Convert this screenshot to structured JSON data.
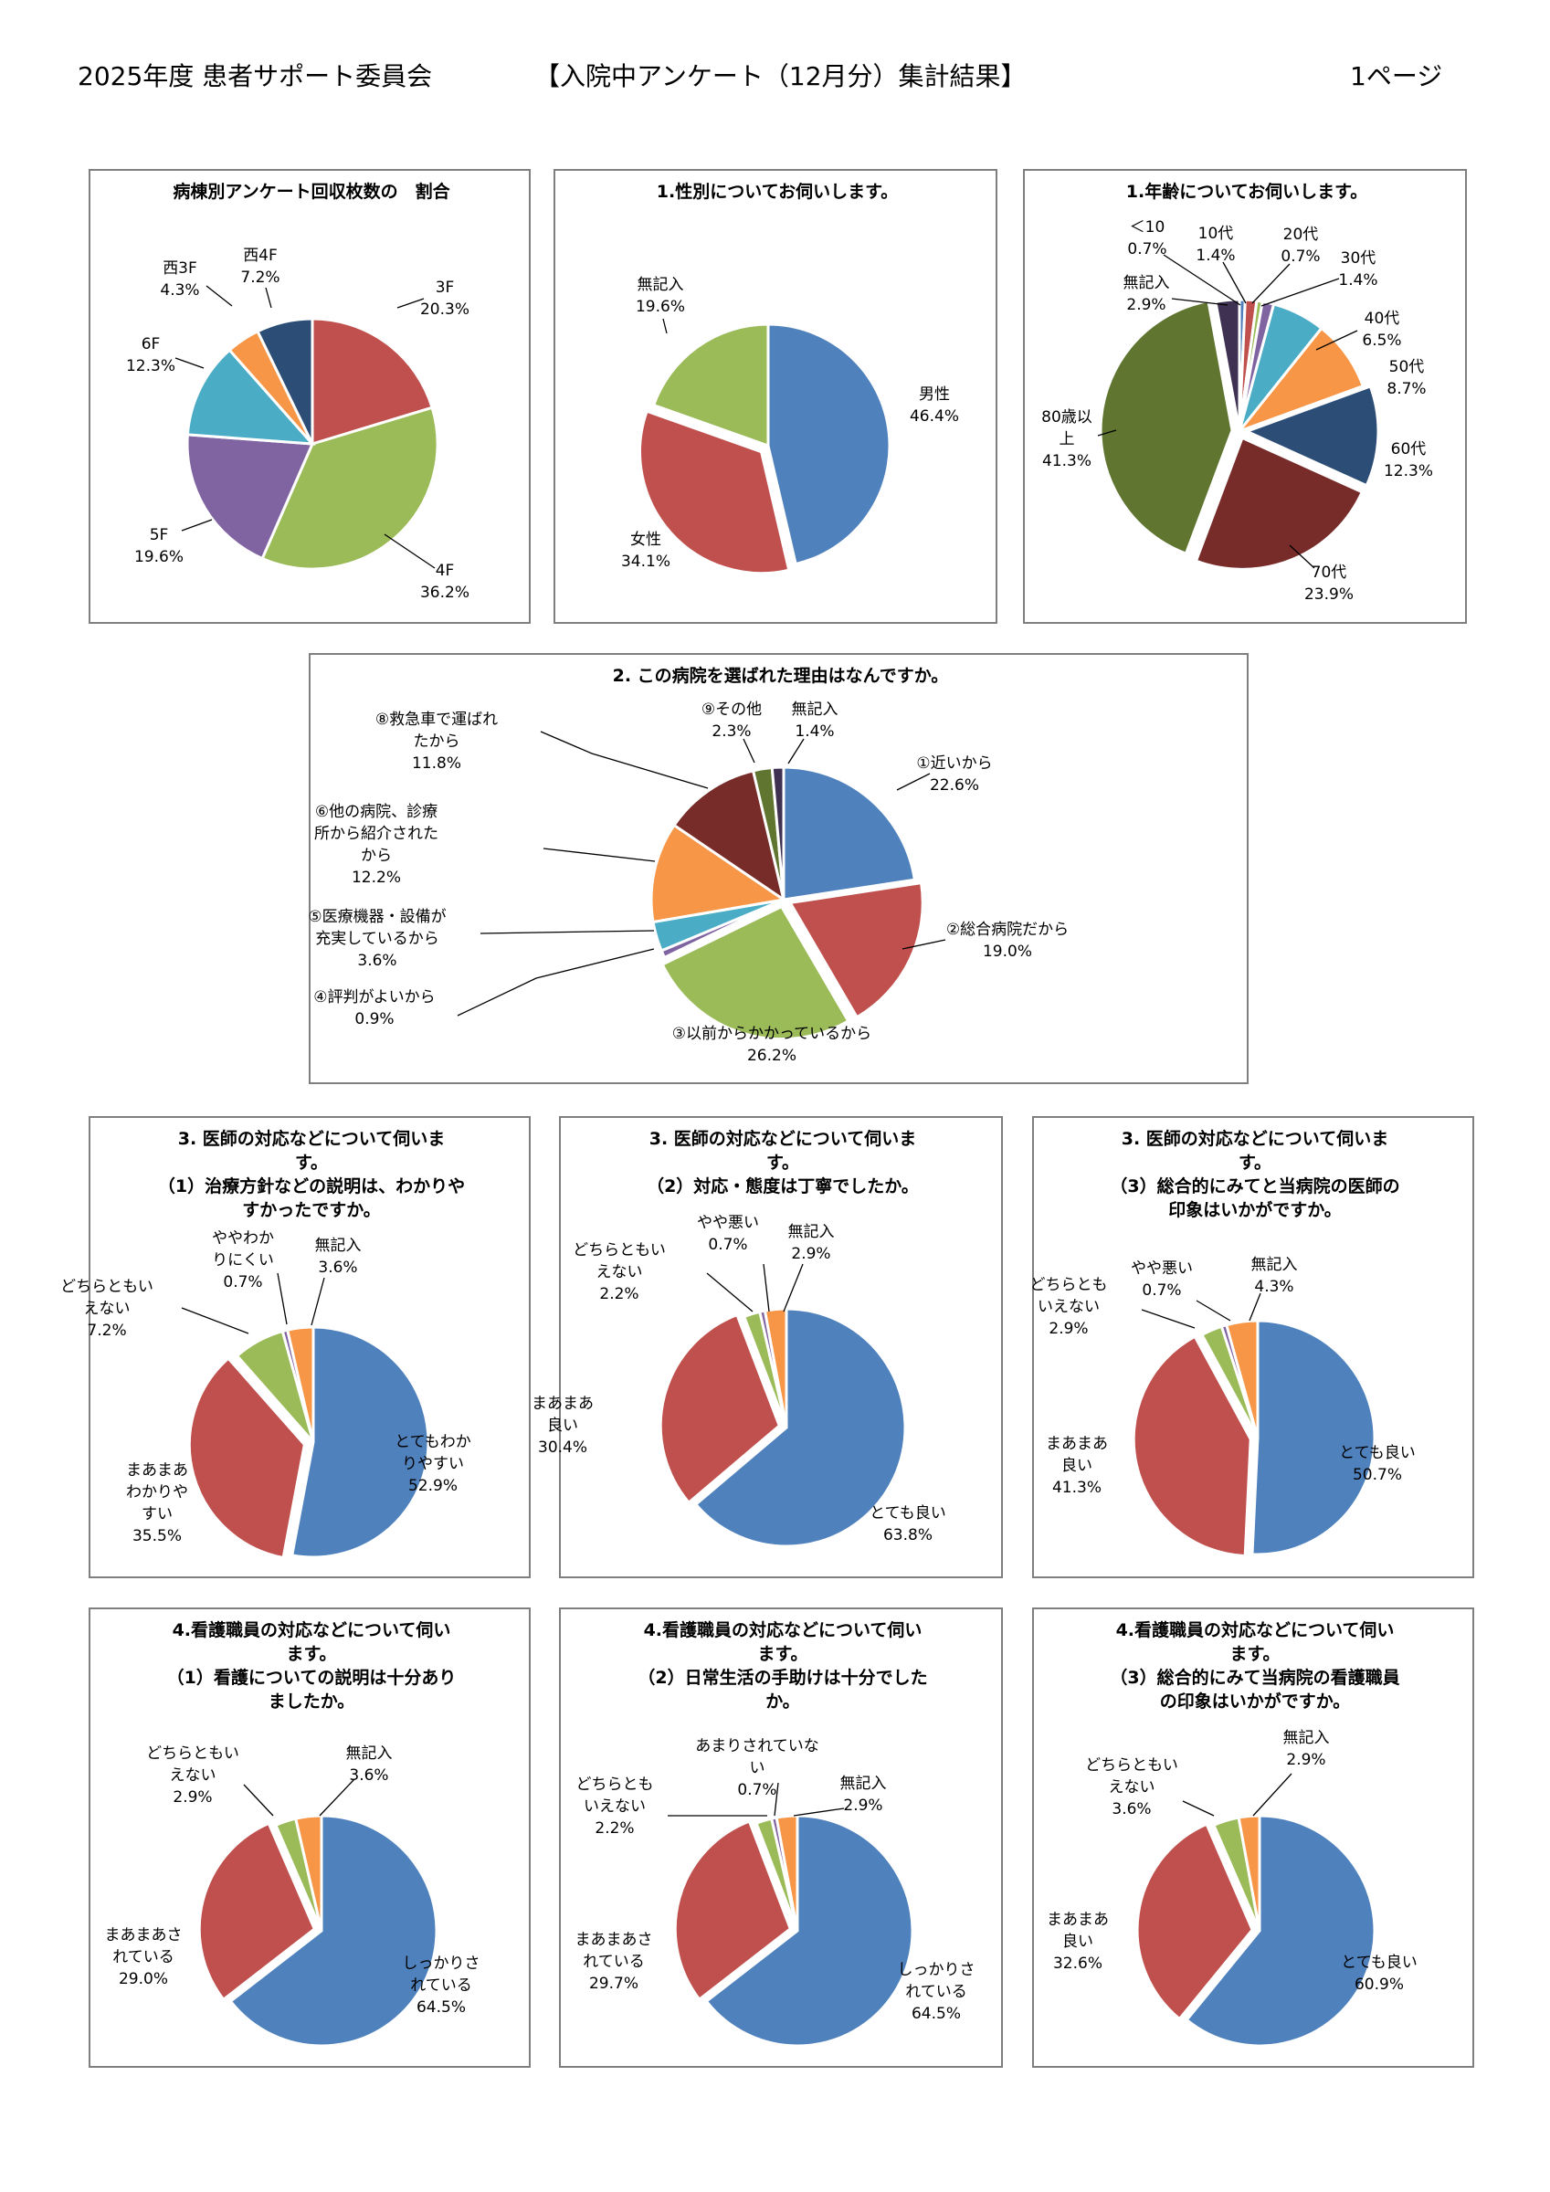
{
  "header": {
    "left": "2025年度 患者サポート委員会",
    "center": "【入院中アンケート（12月分）集計結果】",
    "right": "1ページ"
  },
  "colors": {
    "blue": "#4f81bd",
    "red": "#c0504d",
    "green": "#9bbb59",
    "purple": "#8064a2",
    "teal": "#4bacc6",
    "orange": "#f79646",
    "navy": "#2c4d75",
    "darkred": "#772c2a",
    "olive": "#5f7530",
    "darkpurple": "#3f3151"
  },
  "chart_data": [
    {
      "type": "pie",
      "title": "病棟別アンケート回収枚数の　割合",
      "slices": [
        {
          "label": "3F",
          "value": 20.3,
          "pct": "20.3%",
          "color": "#c0504d"
        },
        {
          "label": "4F",
          "value": 36.2,
          "pct": "36.2%",
          "color": "#9bbb59"
        },
        {
          "label": "5F",
          "value": 19.6,
          "pct": "19.6%",
          "color": "#8064a2"
        },
        {
          "label": "6F",
          "value": 12.3,
          "pct": "12.3%",
          "color": "#4bacc6"
        },
        {
          "label": "西3F",
          "value": 4.3,
          "pct": "4.3%",
          "color": "#f79646"
        },
        {
          "label": "西4F",
          "value": 7.2,
          "pct": "7.2%",
          "color": "#2c4d75"
        }
      ]
    },
    {
      "type": "pie",
      "title": "1.性別についてお伺いします。",
      "slices": [
        {
          "label": "男性",
          "value": 46.4,
          "pct": "46.4%",
          "color": "#4f81bd"
        },
        {
          "label": "女性",
          "value": 34.1,
          "pct": "34.1%",
          "color": "#c0504d"
        },
        {
          "label": "無記入",
          "value": 19.6,
          "pct": "19.6%",
          "color": "#9bbb59"
        }
      ]
    },
    {
      "type": "pie",
      "title": "1.年齢についてお伺いします。",
      "slices": [
        {
          "label": "＜10",
          "value": 0.7,
          "pct": "0.7%",
          "color": "#4f81bd"
        },
        {
          "label": "10代",
          "value": 1.4,
          "pct": "1.4%",
          "color": "#c0504d"
        },
        {
          "label": "20代",
          "value": 0.7,
          "pct": "0.7%",
          "color": "#9bbb59"
        },
        {
          "label": "30代",
          "value": 1.4,
          "pct": "1.4%",
          "color": "#8064a2"
        },
        {
          "label": "40代",
          "value": 6.5,
          "pct": "6.5%",
          "color": "#4bacc6"
        },
        {
          "label": "50代",
          "value": 8.7,
          "pct": "8.7%",
          "color": "#f79646"
        },
        {
          "label": "60代",
          "value": 12.3,
          "pct": "12.3%",
          "color": "#2c4d75"
        },
        {
          "label": "70代",
          "value": 23.9,
          "pct": "23.9%",
          "color": "#772c2a"
        },
        {
          "label": "80歳以上",
          "value": 41.3,
          "pct": "41.3%",
          "color": "#5f7530"
        },
        {
          "label": "無記入",
          "value": 2.9,
          "pct": "2.9%",
          "color": "#3f3151"
        }
      ]
    },
    {
      "type": "pie",
      "title": "2. この病院を選ばれた理由はなんですか。",
      "slices": [
        {
          "label": "①近いから",
          "value": 22.6,
          "pct": "22.6%",
          "color": "#4f81bd"
        },
        {
          "label": "②総合病院だから",
          "value": 19.0,
          "pct": "19.0%",
          "color": "#c0504d"
        },
        {
          "label": "③以前からかかっているから",
          "value": 26.2,
          "pct": "26.2%",
          "color": "#9bbb59"
        },
        {
          "label": "④評判がよいから",
          "value": 0.9,
          "pct": "0.9%",
          "color": "#8064a2"
        },
        {
          "label": "⑤医療機器・設備が充実しているから",
          "value": 3.6,
          "pct": "3.6%",
          "color": "#4bacc6"
        },
        {
          "label": "⑥他の病院、診療所から紹介されたから",
          "value": 12.2,
          "pct": "12.2%",
          "color": "#f79646"
        },
        {
          "label": "⑧救急車で運ばれたから",
          "value": 11.8,
          "pct": "11.8%",
          "color": "#772c2a"
        },
        {
          "label": "⑨その他",
          "value": 2.3,
          "pct": "2.3%",
          "color": "#5f7530"
        },
        {
          "label": "無記入",
          "value": 1.4,
          "pct": "1.4%",
          "color": "#3f3151"
        }
      ]
    },
    {
      "type": "pie",
      "title": "3. 医師の対応などについて伺います。（1）治療方針などの説明は、わかりやすかったですか。",
      "slices": [
        {
          "label": "とてもわかりやすい",
          "value": 52.9,
          "pct": "52.9%",
          "color": "#4f81bd"
        },
        {
          "label": "まあまあわかりやすい",
          "value": 35.5,
          "pct": "35.5%",
          "color": "#c0504d"
        },
        {
          "label": "どちらともいえない",
          "value": 7.2,
          "pct": "7.2%",
          "color": "#9bbb59"
        },
        {
          "label": "ややわかりにくい",
          "value": 0.7,
          "pct": "0.7%",
          "color": "#8064a2"
        },
        {
          "label": "無記入",
          "value": 3.6,
          "pct": "3.6%",
          "color": "#f79646"
        }
      ]
    },
    {
      "type": "pie",
      "title": "3. 医師の対応などについて伺います。（2）対応・態度は丁寧でしたか。",
      "slices": [
        {
          "label": "とても良い",
          "value": 63.8,
          "pct": "63.8%",
          "color": "#4f81bd"
        },
        {
          "label": "まあまあ良い",
          "value": 30.4,
          "pct": "30.4%",
          "color": "#c0504d"
        },
        {
          "label": "どちらともいえない",
          "value": 2.2,
          "pct": "2.2%",
          "color": "#9bbb59"
        },
        {
          "label": "やや悪い",
          "value": 0.7,
          "pct": "0.7%",
          "color": "#8064a2"
        },
        {
          "label": "無記入",
          "value": 2.9,
          "pct": "2.9%",
          "color": "#f79646"
        }
      ]
    },
    {
      "type": "pie",
      "title": "3. 医師の対応などについて伺います。（3）総合的にみてと当病院の医師の印象はいかがですか。",
      "slices": [
        {
          "label": "とても良い",
          "value": 50.7,
          "pct": "50.7%",
          "color": "#4f81bd"
        },
        {
          "label": "まあまあ良い",
          "value": 41.3,
          "pct": "41.3%",
          "color": "#c0504d"
        },
        {
          "label": "どちらともいえない",
          "value": 2.9,
          "pct": "2.9%",
          "color": "#9bbb59"
        },
        {
          "label": "やや悪い",
          "value": 0.7,
          "pct": "0.7%",
          "color": "#8064a2"
        },
        {
          "label": "無記入",
          "value": 4.3,
          "pct": "4.3%",
          "color": "#f79646"
        }
      ]
    },
    {
      "type": "pie",
      "title": "4.看護職員の対応などについて伺います。（1）看護についての説明は十分ありましたか。",
      "slices": [
        {
          "label": "しっかりされている",
          "value": 64.5,
          "pct": "64.5%",
          "color": "#4f81bd"
        },
        {
          "label": "まあまあされている",
          "value": 29.0,
          "pct": "29.0%",
          "color": "#c0504d"
        },
        {
          "label": "どちらともいえない",
          "value": 2.9,
          "pct": "2.9%",
          "color": "#9bbb59"
        },
        {
          "label": "無記入",
          "value": 3.6,
          "pct": "3.6%",
          "color": "#f79646"
        }
      ]
    },
    {
      "type": "pie",
      "title": "4.看護職員の対応などについて伺います。（2）日常生活の手助けは十分でしたか。",
      "slices": [
        {
          "label": "しっかりされている",
          "value": 64.5,
          "pct": "64.5%",
          "color": "#4f81bd"
        },
        {
          "label": "まあまあされている",
          "value": 29.7,
          "pct": "29.7%",
          "color": "#c0504d"
        },
        {
          "label": "どちらともいえない",
          "value": 2.2,
          "pct": "2.2%",
          "color": "#9bbb59"
        },
        {
          "label": "あまりされていない",
          "value": 0.7,
          "pct": "0.7%",
          "color": "#8064a2"
        },
        {
          "label": "無記入",
          "value": 2.9,
          "pct": "2.9%",
          "color": "#f79646"
        }
      ]
    },
    {
      "type": "pie",
      "title": "4.看護職員の対応などについて伺います。（3）総合的にみて当病院の看護職員の印象はいかがですか。",
      "slices": [
        {
          "label": "とても良い",
          "value": 60.9,
          "pct": "60.9%",
          "color": "#4f81bd"
        },
        {
          "label": "まあまあ良い",
          "value": 32.6,
          "pct": "32.6%",
          "color": "#c0504d"
        },
        {
          "label": "どちらともいえない",
          "value": 3.6,
          "pct": "3.6%",
          "color": "#9bbb59"
        },
        {
          "label": "無記入",
          "value": 2.9,
          "pct": "2.9%",
          "color": "#f79646"
        }
      ]
    }
  ]
}
